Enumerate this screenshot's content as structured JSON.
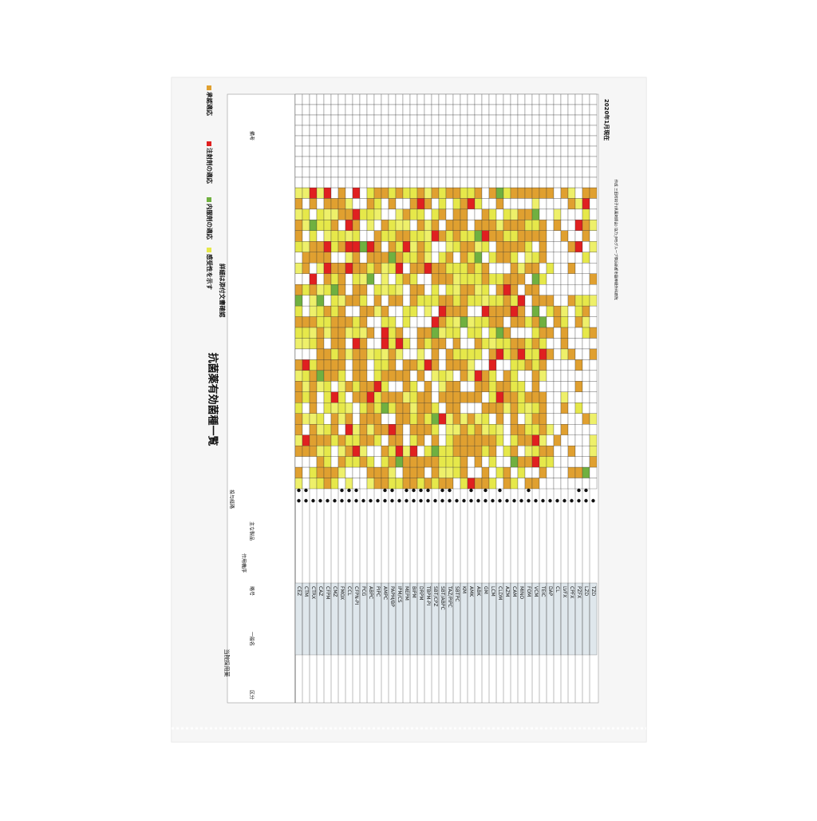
{
  "header": {
    "title": "抗菌薬有効菌種一覧",
    "adopted": "当院採用薬",
    "date": "2020年1月現在",
    "author": "作成 三田村将子(県薬剤師会) 協力:JMSグループ横浜新都市脳神経外科病院"
  },
  "legend": [
    "承認適応",
    "注射剤の適応",
    "内服剤の適応",
    "感受性を示す",
    "詳細は添付文書確認"
  ],
  "table": {
    "columns": [
      "区分",
      "一般名",
      "略号",
      "作用機序",
      "主な製品",
      "投与経路",
      "備考"
    ],
    "abbreviations": [
      "CEZ",
      "CTM",
      "CTRX",
      "CAZ",
      "CFPM",
      "CMZ",
      "FMOX",
      "CCL",
      "CFPN-PI",
      "PCG",
      "ABPC",
      "PIPC",
      "AMPC",
      "PAPM/BP",
      "IPM/CS",
      "MEPM",
      "BIPM",
      "DRPM",
      "TBPM-PI",
      "SBT/CPZ",
      "SBT/ABPC",
      "TAZ/PIPC",
      "SBTPC",
      "KM",
      "AMK",
      "ABK",
      "GM",
      "LCM",
      "CLDM",
      "AZM",
      "CAM",
      "MINO",
      "FOM",
      "VCM",
      "TEIC",
      "DAP",
      "CL",
      "LVFX",
      "CPFX",
      "PZFX",
      "LZD",
      "TZD"
    ]
  }
}
